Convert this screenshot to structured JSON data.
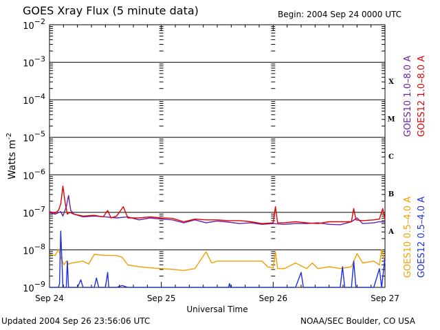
{
  "header": {
    "title": "GOES Xray Flux (5 minute data)",
    "begin": "Begin:  2004 Sep 24 0000 UTC"
  },
  "footer": {
    "updated": "Updated 2004 Sep 26 23:56:06 UTC",
    "credit": "NOAA/SEC Boulder, CO USA"
  },
  "chart_data": {
    "type": "line",
    "xlabel": "Universal Time",
    "ylabel": "Watts m",
    "ylabel_exponent": "-2",
    "y_scale": "log",
    "ylim": [
      1e-09,
      0.01
    ],
    "xlim": [
      0,
      3
    ],
    "x_unit": "days since 2004 Sep 24 0000 UTC",
    "x_ticks": [
      {
        "x": 0,
        "label": "Sep 24"
      },
      {
        "x": 1,
        "label": "Sep 25"
      },
      {
        "x": 2,
        "label": "Sep 26"
      },
      {
        "x": 3,
        "label": "Sep 27"
      }
    ],
    "y_ticks": [
      {
        "exp": -2,
        "label": "10",
        "sup": "−2"
      },
      {
        "exp": -3,
        "label": "10",
        "sup": "−3"
      },
      {
        "exp": -4,
        "label": "10",
        "sup": "−4"
      },
      {
        "exp": -5,
        "label": "10",
        "sup": "−5"
      },
      {
        "exp": -6,
        "label": "10",
        "sup": "−6"
      },
      {
        "exp": -7,
        "label": "10",
        "sup": "−7"
      },
      {
        "exp": -8,
        "label": "10",
        "sup": "−8"
      },
      {
        "exp": -9,
        "label": "10",
        "sup": "−9"
      }
    ],
    "grid_lines_y": [
      0.001,
      0.0001,
      1e-05,
      1e-06,
      1e-07,
      1e-08
    ],
    "flare_classes": [
      {
        "label": "X",
        "logy": -3.5
      },
      {
        "label": "M",
        "logy": -4.5
      },
      {
        "label": "C",
        "logy": -5.5
      },
      {
        "label": "B",
        "logy": -6.5
      },
      {
        "label": "A",
        "logy": -7.5
      }
    ],
    "series": [
      {
        "name": "GOES10 1.0–8.0 A",
        "color": "#6a1fa8",
        "points": [
          [
            0,
            -7.0
          ],
          [
            0.05,
            -7.05
          ],
          [
            0.1,
            -6.98
          ],
          [
            0.12,
            -7.1
          ],
          [
            0.15,
            -6.85
          ],
          [
            0.17,
            -6.55
          ],
          [
            0.19,
            -6.95
          ],
          [
            0.22,
            -7.05
          ],
          [
            0.3,
            -7.12
          ],
          [
            0.4,
            -7.1
          ],
          [
            0.5,
            -7.12
          ],
          [
            0.6,
            -7.15
          ],
          [
            0.7,
            -7.12
          ],
          [
            0.8,
            -7.2
          ],
          [
            0.9,
            -7.15
          ],
          [
            1.0,
            -7.18
          ],
          [
            1.1,
            -7.2
          ],
          [
            1.2,
            -7.28
          ],
          [
            1.3,
            -7.2
          ],
          [
            1.4,
            -7.28
          ],
          [
            1.5,
            -7.23
          ],
          [
            1.6,
            -7.26
          ],
          [
            1.7,
            -7.3
          ],
          [
            1.8,
            -7.28
          ],
          [
            1.9,
            -7.32
          ],
          [
            2.0,
            -7.3
          ],
          [
            2.1,
            -7.32
          ],
          [
            2.2,
            -7.3
          ],
          [
            2.3,
            -7.3
          ],
          [
            2.4,
            -7.28
          ],
          [
            2.5,
            -7.32
          ],
          [
            2.6,
            -7.33
          ],
          [
            2.7,
            -7.25
          ],
          [
            2.75,
            -7.15
          ],
          [
            2.8,
            -7.3
          ],
          [
            2.9,
            -7.28
          ],
          [
            2.95,
            -7.25
          ],
          [
            3.0,
            -7.26
          ]
        ]
      },
      {
        "name": "GOES12 1.0–8.0 A",
        "color": "#e00000",
        "points": [
          [
            0,
            -6.98
          ],
          [
            0.05,
            -7.02
          ],
          [
            0.08,
            -6.95
          ],
          [
            0.1,
            -6.78
          ],
          [
            0.12,
            -6.3
          ],
          [
            0.14,
            -6.75
          ],
          [
            0.16,
            -7.05
          ],
          [
            0.18,
            -7.0
          ],
          [
            0.22,
            -7.05
          ],
          [
            0.3,
            -7.1
          ],
          [
            0.4,
            -7.08
          ],
          [
            0.48,
            -7.12
          ],
          [
            0.52,
            -6.95
          ],
          [
            0.55,
            -7.15
          ],
          [
            0.6,
            -7.1
          ],
          [
            0.66,
            -6.85
          ],
          [
            0.7,
            -7.15
          ],
          [
            0.8,
            -7.15
          ],
          [
            0.9,
            -7.12
          ],
          [
            1.0,
            -7.15
          ],
          [
            1.1,
            -7.16
          ],
          [
            1.2,
            -7.25
          ],
          [
            1.3,
            -7.18
          ],
          [
            1.4,
            -7.2
          ],
          [
            1.5,
            -7.2
          ],
          [
            1.6,
            -7.22
          ],
          [
            1.7,
            -7.22
          ],
          [
            1.8,
            -7.25
          ],
          [
            1.9,
            -7.3
          ],
          [
            2.0,
            -7.28
          ],
          [
            2.02,
            -6.85
          ],
          [
            2.04,
            -7.28
          ],
          [
            2.1,
            -7.28
          ],
          [
            2.2,
            -7.25
          ],
          [
            2.3,
            -7.28
          ],
          [
            2.4,
            -7.3
          ],
          [
            2.5,
            -7.25
          ],
          [
            2.6,
            -7.25
          ],
          [
            2.7,
            -7.25
          ],
          [
            2.72,
            -6.9
          ],
          [
            2.74,
            -7.2
          ],
          [
            2.8,
            -7.22
          ],
          [
            2.9,
            -7.2
          ],
          [
            2.95,
            -7.18
          ],
          [
            2.98,
            -6.9
          ],
          [
            3.0,
            -7.2
          ]
        ]
      },
      {
        "name": "GOES10 0.5–4.0 A",
        "color": "#f0a000",
        "points": [
          [
            0,
            -8.12
          ],
          [
            0.05,
            -8.15
          ],
          [
            0.08,
            -7.98
          ],
          [
            0.1,
            -8.2
          ],
          [
            0.13,
            -8.4
          ],
          [
            0.15,
            -8.3
          ],
          [
            0.17,
            -8.38
          ],
          [
            0.2,
            -8.35
          ],
          [
            0.3,
            -8.3
          ],
          [
            0.35,
            -8.38
          ],
          [
            0.4,
            -8.12
          ],
          [
            0.5,
            -8.15
          ],
          [
            0.6,
            -8.15
          ],
          [
            0.65,
            -8.2
          ],
          [
            0.7,
            -8.4
          ],
          [
            0.8,
            -8.45
          ],
          [
            0.9,
            -8.48
          ],
          [
            1.0,
            -8.5
          ],
          [
            1.1,
            -8.52
          ],
          [
            1.2,
            -8.55
          ],
          [
            1.3,
            -8.5
          ],
          [
            1.4,
            -8.05
          ],
          [
            1.45,
            -8.35
          ],
          [
            1.5,
            -8.3
          ],
          [
            1.6,
            -8.3
          ],
          [
            1.7,
            -8.3
          ],
          [
            1.8,
            -8.3
          ],
          [
            1.9,
            -8.3
          ],
          [
            1.95,
            -8.45
          ],
          [
            2.0,
            -8.48
          ],
          [
            2.02,
            -8.05
          ],
          [
            2.04,
            -8.5
          ],
          [
            2.1,
            -8.5
          ],
          [
            2.2,
            -8.35
          ],
          [
            2.3,
            -8.5
          ],
          [
            2.35,
            -8.35
          ],
          [
            2.4,
            -8.5
          ],
          [
            2.5,
            -8.45
          ],
          [
            2.6,
            -8.5
          ],
          [
            2.7,
            -8.45
          ],
          [
            2.75,
            -8.1
          ],
          [
            2.8,
            -8.35
          ],
          [
            2.9,
            -8.3
          ],
          [
            2.95,
            -8.4
          ],
          [
            2.97,
            -8.0
          ],
          [
            3.0,
            -8.35
          ]
        ]
      },
      {
        "name": "GOES12 0.5–4.0 A",
        "color": "#1a2ee0",
        "points": [
          [
            0.0,
            -9.0
          ],
          [
            0.08,
            -9.0
          ],
          [
            0.09,
            -8.9
          ],
          [
            0.1,
            -7.5
          ],
          [
            0.11,
            -8.2
          ],
          [
            0.12,
            -9.0
          ],
          [
            0.15,
            -9.0
          ],
          [
            0.16,
            -8.3
          ],
          [
            0.17,
            -9.0
          ],
          [
            0.25,
            -9.0
          ],
          [
            0.28,
            -8.8
          ],
          [
            0.3,
            -9.0
          ],
          [
            0.4,
            -9.0
          ],
          [
            0.42,
            -8.75
          ],
          [
            0.44,
            -9.0
          ],
          [
            0.5,
            -9.0
          ],
          [
            0.52,
            -8.6
          ],
          [
            0.53,
            -9.0
          ],
          [
            0.6,
            -9.0
          ],
          [
            0.65,
            -8.95
          ],
          [
            0.7,
            -9.0
          ],
          [
            1.0,
            -9.0
          ],
          [
            1.4,
            -9.0
          ],
          [
            1.6,
            -9.0
          ],
          [
            1.61,
            -8.9
          ],
          [
            1.62,
            -9.0
          ],
          [
            2.2,
            -9.0
          ],
          [
            2.25,
            -8.6
          ],
          [
            2.27,
            -9.0
          ],
          [
            2.6,
            -9.0
          ],
          [
            2.62,
            -8.45
          ],
          [
            2.64,
            -9.0
          ],
          [
            2.7,
            -9.0
          ],
          [
            2.72,
            -8.3
          ],
          [
            2.74,
            -9.0
          ],
          [
            2.9,
            -9.0
          ],
          [
            2.95,
            -8.5
          ],
          [
            2.97,
            -9.0
          ],
          [
            3.0,
            -8.2
          ]
        ]
      }
    ],
    "legend": [
      {
        "text": "GOES10 1.0–8.0 A",
        "color": "#6a1fa8"
      },
      {
        "text": "GOES12 1.0–8.0 A",
        "color": "#e00000"
      },
      {
        "text": "GOES10 0.5–4.0 A",
        "color": "#f0a000"
      },
      {
        "text": "GOES12 0.5–4.0 A",
        "color": "#1a2ee0"
      }
    ]
  }
}
